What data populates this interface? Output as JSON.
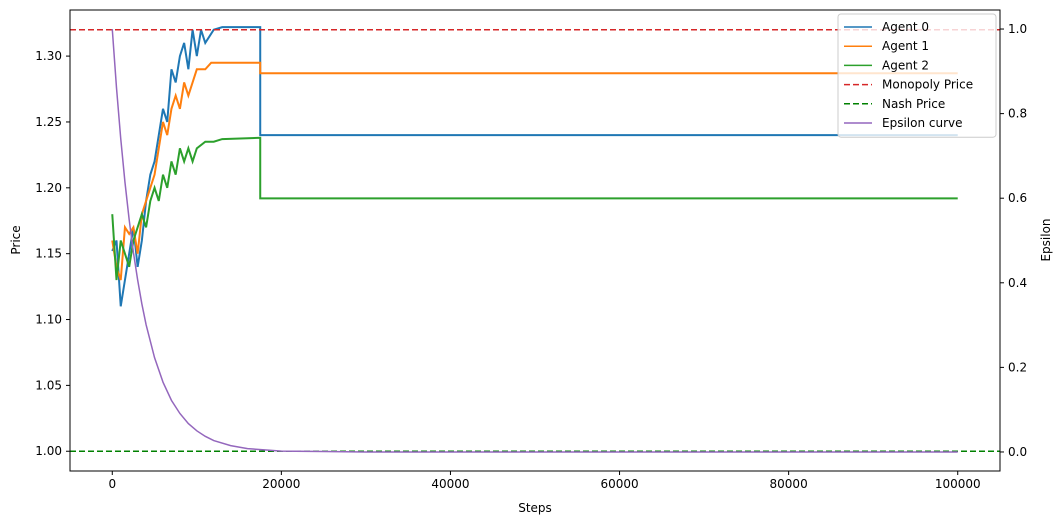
{
  "chart_data": {
    "type": "line",
    "xlabel": "Steps",
    "ylabel": "Price",
    "y2label": "Epsilon",
    "xlim": [
      -5000,
      105000
    ],
    "ylim": [
      0.985,
      1.335
    ],
    "y2lim": [
      -0.045,
      1.045
    ],
    "xticks": [
      0,
      20000,
      40000,
      60000,
      80000,
      100000
    ],
    "yticks": [
      1.0,
      1.05,
      1.1,
      1.15,
      1.2,
      1.25,
      1.3
    ],
    "y2ticks": [
      0.0,
      0.2,
      0.4,
      0.6,
      0.8,
      1.0
    ],
    "xtick_labels": [
      "0",
      "20000",
      "40000",
      "60000",
      "80000",
      "100000"
    ],
    "ytick_labels": [
      "1.00",
      "1.05",
      "1.10",
      "1.15",
      "1.20",
      "1.25",
      "1.30"
    ],
    "y2tick_labels": [
      "0.0",
      "0.2",
      "0.4",
      "0.6",
      "0.8",
      "1.0"
    ],
    "grid": false,
    "legend_position": "top-right",
    "series": [
      {
        "name": "Agent 0",
        "color": "#1f77b4",
        "style": "solid",
        "axis": "left",
        "points": [
          [
            0,
            1.152
          ],
          [
            500,
            1.16
          ],
          [
            1000,
            1.11
          ],
          [
            1500,
            1.13
          ],
          [
            2000,
            1.15
          ],
          [
            2500,
            1.17
          ],
          [
            3000,
            1.14
          ],
          [
            3500,
            1.16
          ],
          [
            4000,
            1.19
          ],
          [
            4500,
            1.21
          ],
          [
            5000,
            1.22
          ],
          [
            5500,
            1.24
          ],
          [
            6000,
            1.26
          ],
          [
            6500,
            1.25
          ],
          [
            7000,
            1.29
          ],
          [
            7500,
            1.28
          ],
          [
            8000,
            1.3
          ],
          [
            8500,
            1.31
          ],
          [
            9000,
            1.29
          ],
          [
            9500,
            1.32
          ],
          [
            10000,
            1.3
          ],
          [
            10500,
            1.32
          ],
          [
            11000,
            1.31
          ],
          [
            12000,
            1.32
          ],
          [
            13000,
            1.322
          ],
          [
            14000,
            1.322
          ],
          [
            15000,
            1.322
          ],
          [
            16000,
            1.322
          ],
          [
            17500,
            1.322
          ],
          [
            17500,
            1.24
          ],
          [
            100000,
            1.24
          ]
        ]
      },
      {
        "name": "Agent 1",
        "color": "#ff7f0e",
        "style": "solid",
        "axis": "left",
        "points": [
          [
            0,
            1.16
          ],
          [
            500,
            1.14
          ],
          [
            1000,
            1.13
          ],
          [
            1500,
            1.17
          ],
          [
            2000,
            1.165
          ],
          [
            2500,
            1.17
          ],
          [
            3000,
            1.15
          ],
          [
            3500,
            1.18
          ],
          [
            4000,
            1.19
          ],
          [
            4500,
            1.2
          ],
          [
            5000,
            1.21
          ],
          [
            5500,
            1.23
          ],
          [
            6000,
            1.25
          ],
          [
            6500,
            1.24
          ],
          [
            7000,
            1.26
          ],
          [
            7500,
            1.27
          ],
          [
            8000,
            1.26
          ],
          [
            8500,
            1.28
          ],
          [
            9000,
            1.27
          ],
          [
            9500,
            1.28
          ],
          [
            10000,
            1.29
          ],
          [
            10500,
            1.29
          ],
          [
            11000,
            1.29
          ],
          [
            11700,
            1.295
          ],
          [
            17500,
            1.295
          ],
          [
            17500,
            1.287
          ],
          [
            100000,
            1.287
          ]
        ]
      },
      {
        "name": "Agent 2",
        "color": "#2ca02c",
        "style": "solid",
        "axis": "left",
        "points": [
          [
            0,
            1.18
          ],
          [
            500,
            1.13
          ],
          [
            1000,
            1.16
          ],
          [
            1500,
            1.15
          ],
          [
            2000,
            1.14
          ],
          [
            2500,
            1.16
          ],
          [
            3000,
            1.17
          ],
          [
            3500,
            1.18
          ],
          [
            4000,
            1.17
          ],
          [
            4500,
            1.19
          ],
          [
            5000,
            1.2
          ],
          [
            5500,
            1.19
          ],
          [
            6000,
            1.21
          ],
          [
            6500,
            1.2
          ],
          [
            7000,
            1.22
          ],
          [
            7500,
            1.21
          ],
          [
            8000,
            1.23
          ],
          [
            8500,
            1.22
          ],
          [
            9000,
            1.23
          ],
          [
            9500,
            1.22
          ],
          [
            10000,
            1.23
          ],
          [
            11000,
            1.235
          ],
          [
            12000,
            1.235
          ],
          [
            13000,
            1.237
          ],
          [
            17500,
            1.238
          ],
          [
            17500,
            1.192
          ],
          [
            100000,
            1.192
          ]
        ]
      },
      {
        "name": "Monopoly Price",
        "color": "#d62728",
        "style": "dashed",
        "axis": "left",
        "points": [
          [
            -5000,
            1.32
          ],
          [
            105000,
            1.32
          ]
        ]
      },
      {
        "name": "Nash Price",
        "color": "#008000",
        "style": "dashed",
        "axis": "left",
        "points": [
          [
            -5000,
            1.0
          ],
          [
            105000,
            1.0
          ]
        ]
      },
      {
        "name": "Epsilon curve",
        "color": "#9467bd",
        "style": "solid",
        "axis": "right",
        "points": [
          [
            0,
            1.0
          ],
          [
            500,
            0.861
          ],
          [
            1000,
            0.741
          ],
          [
            1500,
            0.638
          ],
          [
            2000,
            0.549
          ],
          [
            2500,
            0.472
          ],
          [
            3000,
            0.407
          ],
          [
            3500,
            0.35
          ],
          [
            4000,
            0.301
          ],
          [
            5000,
            0.223
          ],
          [
            6000,
            0.165
          ],
          [
            7000,
            0.122
          ],
          [
            8000,
            0.091
          ],
          [
            9000,
            0.067
          ],
          [
            10000,
            0.05
          ],
          [
            11000,
            0.037
          ],
          [
            12000,
            0.027
          ],
          [
            14000,
            0.015
          ],
          [
            16000,
            0.008
          ],
          [
            18000,
            0.005
          ],
          [
            20000,
            0.002
          ],
          [
            25000,
            0.001
          ],
          [
            30000,
            0.0
          ],
          [
            100000,
            0.0
          ]
        ]
      }
    ]
  }
}
